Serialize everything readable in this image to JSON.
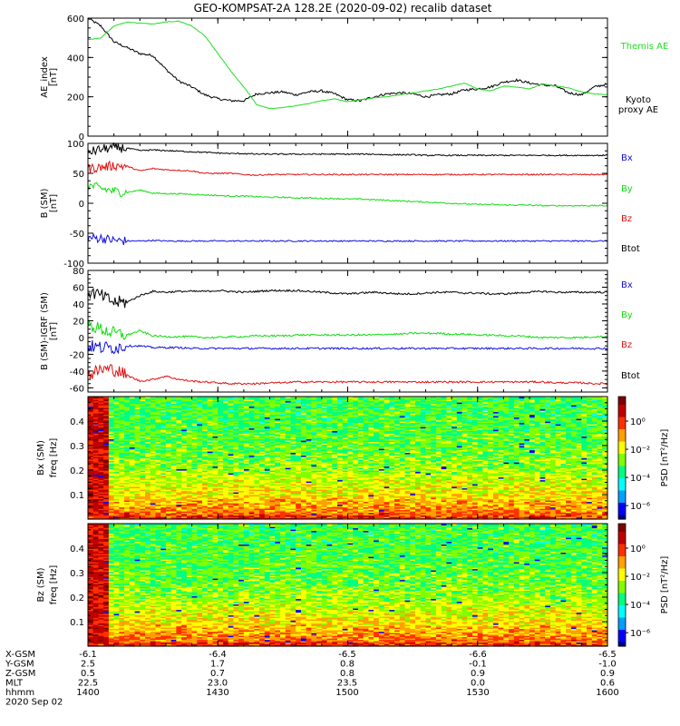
{
  "title": "GEO-KOMPSAT-2A 128.2E (2020-09-02) recalib dataset",
  "colors": {
    "black": "#000000",
    "red": "#e01010",
    "green": "#10dd10",
    "blue": "#1010dd",
    "kyoto": "#22dd22",
    "colorbar": [
      "#000080",
      "#0000ff",
      "#00a0ff",
      "#00ffff",
      "#00ff80",
      "#80ff00",
      "#ffff00",
      "#ffa000",
      "#ff3000",
      "#c00000",
      "#800000"
    ]
  },
  "chart_data": [
    {
      "type": "line",
      "id": "ae",
      "ylabel": [
        "AE_index",
        "[nT]"
      ],
      "ylim": [
        0,
        600
      ],
      "yticks": [
        0,
        200,
        400,
        600
      ],
      "x": [
        14.0,
        14.05,
        14.1,
        14.15,
        14.2,
        14.25,
        14.3,
        14.35,
        14.4,
        14.45,
        14.5,
        14.55,
        14.6,
        14.65,
        14.7,
        14.75,
        14.8,
        14.85,
        14.9,
        14.95,
        15.0,
        15.05,
        15.1,
        15.15,
        15.2,
        15.25,
        15.3,
        15.35,
        15.4,
        15.45,
        15.5,
        15.55,
        15.6,
        15.65,
        15.7,
        15.75,
        15.8,
        15.85,
        15.9,
        15.95,
        16.0
      ],
      "series": [
        {
          "name": "Themis AE",
          "color": "#000000",
          "values": [
            600,
            560,
            480,
            450,
            420,
            410,
            340,
            280,
            250,
            210,
            190,
            180,
            180,
            215,
            220,
            225,
            210,
            225,
            230,
            215,
            185,
            180,
            200,
            215,
            220,
            215,
            200,
            210,
            215,
            235,
            240,
            250,
            275,
            285,
            270,
            260,
            255,
            220,
            210,
            250,
            265
          ]
        },
        {
          "name": [
            "Kyoto",
            "proxy AE"
          ],
          "color": "#22dd22",
          "values": [
            490,
            500,
            560,
            580,
            575,
            570,
            580,
            585,
            560,
            510,
            420,
            330,
            250,
            160,
            140,
            145,
            155,
            165,
            180,
            190,
            175,
            185,
            195,
            200,
            210,
            220,
            230,
            240,
            255,
            270,
            240,
            230,
            255,
            250,
            240,
            265,
            255,
            245,
            225,
            215,
            210
          ]
        }
      ]
    },
    {
      "type": "line",
      "id": "bsm",
      "ylabel": [
        "B (SM)",
        "[nT]"
      ],
      "ylim": [
        -100,
        100
      ],
      "yticks": [
        -100,
        -50,
        0,
        50,
        100
      ],
      "x": [
        14.0,
        14.05,
        14.1,
        14.15,
        14.2,
        14.25,
        14.3,
        14.35,
        14.4,
        14.45,
        14.5,
        14.55,
        14.6,
        14.65,
        14.7,
        14.75,
        14.8,
        14.85,
        14.9,
        14.95,
        15.0,
        15.05,
        15.1,
        15.15,
        15.2,
        15.25,
        15.3,
        15.35,
        15.4,
        15.45,
        15.5,
        15.55,
        15.6,
        15.65,
        15.7,
        15.75,
        15.8,
        15.85,
        15.9,
        15.95,
        16.0
      ],
      "series": [
        {
          "name": "Bx",
          "color": "#1010dd",
          "values": [
            -58,
            -58,
            -62,
            -63,
            -63,
            -62,
            -63,
            -63,
            -63,
            -63,
            -63,
            -63,
            -63,
            -63,
            -63,
            -63,
            -63,
            -63,
            -63,
            -63,
            -63,
            -63,
            -63,
            -63,
            -63,
            -63,
            -63,
            -63,
            -63,
            -63,
            -63,
            -63,
            -63,
            -63,
            -63,
            -63,
            -63,
            -63,
            -63,
            -63,
            -63
          ]
        },
        {
          "name": "By",
          "color": "#10dd10",
          "values": [
            30,
            25,
            20,
            18,
            22,
            17,
            16,
            16,
            15,
            14,
            13,
            12,
            12,
            11,
            10,
            10,
            9,
            9,
            8,
            8,
            7,
            7,
            6,
            5,
            4,
            3,
            2,
            1,
            0,
            -1,
            -2,
            -2,
            -3,
            -3,
            -3,
            -4,
            -4,
            -4,
            -4,
            -4,
            -4
          ]
        },
        {
          "name": "Bz",
          "color": "#e01010",
          "values": [
            58,
            60,
            63,
            62,
            54,
            58,
            56,
            55,
            54,
            50,
            50,
            50,
            48,
            47,
            48,
            48,
            48,
            48,
            48,
            48,
            48,
            48,
            48,
            48,
            48,
            48,
            48,
            48,
            48,
            48,
            48,
            48,
            48,
            48,
            48,
            48,
            48,
            48,
            48,
            48,
            48
          ]
        },
        {
          "name": "Btot",
          "color": "#000000",
          "values": [
            85,
            90,
            93,
            92,
            88,
            89,
            88,
            87,
            86,
            85,
            84,
            83,
            83,
            82,
            82,
            82,
            82,
            82,
            82,
            82,
            82,
            82,
            82,
            81,
            81,
            81,
            80,
            80,
            80,
            80,
            80,
            80,
            80,
            80,
            80,
            80,
            80,
            80,
            80,
            80,
            80
          ]
        }
      ]
    },
    {
      "type": "line",
      "id": "bdiff",
      "ylabel": [
        "B (SM)-IGRF (SM)",
        "[nT]"
      ],
      "ylim": [
        -65,
        80
      ],
      "yticks": [
        -60,
        -40,
        -20,
        0,
        20,
        40,
        60,
        80
      ],
      "x": [
        14.0,
        14.05,
        14.1,
        14.15,
        14.2,
        14.25,
        14.3,
        14.35,
        14.4,
        14.45,
        14.5,
        14.55,
        14.6,
        14.65,
        14.7,
        14.75,
        14.8,
        14.85,
        14.9,
        14.95,
        15.0,
        15.05,
        15.1,
        15.15,
        15.2,
        15.25,
        15.3,
        15.35,
        15.4,
        15.45,
        15.5,
        15.55,
        15.6,
        15.65,
        15.7,
        15.75,
        15.8,
        15.85,
        15.9,
        15.95,
        16.0
      ],
      "series": [
        {
          "name": "Bx",
          "color": "#000000",
          "values": [
            55,
            50,
            42,
            42,
            50,
            55,
            54,
            55,
            55,
            55,
            56,
            55,
            54,
            55,
            56,
            56,
            56,
            55,
            54,
            53,
            52,
            53,
            54,
            53,
            52,
            52,
            53,
            54,
            54,
            53,
            53,
            52,
            52,
            53,
            54,
            55,
            54,
            54,
            54,
            54,
            54
          ]
        },
        {
          "name": "By",
          "color": "#10dd10",
          "values": [
            15,
            10,
            5,
            3,
            8,
            2,
            1,
            1,
            1,
            0,
            0,
            1,
            1,
            2,
            2,
            2,
            3,
            3,
            3,
            3,
            3,
            3,
            3,
            4,
            4,
            5,
            5,
            5,
            4,
            4,
            3,
            3,
            2,
            2,
            1,
            0,
            0,
            0,
            0,
            1,
            1
          ]
        },
        {
          "name": "Bz",
          "color": "#1010dd",
          "values": [
            -10,
            -12,
            -12,
            -10,
            -10,
            -12,
            -12,
            -12,
            -13,
            -13,
            -13,
            -13,
            -13,
            -13,
            -13,
            -13,
            -13,
            -13,
            -13,
            -13,
            -13,
            -13,
            -13,
            -13,
            -13,
            -13,
            -13,
            -13,
            -13,
            -13,
            -13,
            -13,
            -13,
            -13,
            -13,
            -13,
            -13,
            -13,
            -13,
            -13,
            -13
          ]
        },
        {
          "name": "Btot",
          "color": "#e01010",
          "values": [
            -45,
            -38,
            -38,
            -45,
            -52,
            -50,
            -46,
            -50,
            -52,
            -53,
            -54,
            -55,
            -55,
            -55,
            -54,
            -54,
            -53,
            -53,
            -53,
            -53,
            -53,
            -53,
            -53,
            -53,
            -53,
            -53,
            -53,
            -53,
            -53,
            -53,
            -53,
            -53,
            -53,
            -53,
            -53,
            -53,
            -54,
            -54,
            -54,
            -55,
            -55
          ]
        }
      ]
    },
    {
      "type": "heatmap",
      "id": "bx-spec",
      "ylabel": [
        "Bx (SM)",
        "freq [Hz]"
      ],
      "ylim": [
        0,
        0.5
      ],
      "yticks": [
        0.1,
        0.2,
        0.3,
        0.4
      ],
      "colorbar_label": "PSD [nT²/Hz]",
      "colorbar_ticks": [
        "10⁰",
        "10⁻²",
        "10⁻⁴",
        "10⁻⁶"
      ]
    },
    {
      "type": "heatmap",
      "id": "bz-spec",
      "ylabel": [
        "Bz (SM)",
        "freq [Hz]"
      ],
      "ylim": [
        0,
        0.5
      ],
      "yticks": [
        0.1,
        0.2,
        0.3,
        0.4
      ],
      "colorbar_label": "PSD [nT²/Hz]",
      "colorbar_ticks": [
        "10⁰",
        "10⁻²",
        "10⁻⁴",
        "10⁻⁶"
      ]
    }
  ],
  "axis_table": {
    "rows": [
      {
        "label": "X-GSM",
        "values": [
          "-6.1",
          "-6.4",
          "-6.5",
          "-6.6",
          "-6.5"
        ]
      },
      {
        "label": "Y-GSM",
        "values": [
          "2.5",
          "1.7",
          "0.8",
          "-0.1",
          "-1.0"
        ]
      },
      {
        "label": "Z-GSM",
        "values": [
          "0.5",
          "0.7",
          "0.8",
          "0.9",
          "0.9"
        ]
      },
      {
        "label": "MLT",
        "values": [
          "22.5",
          "23.0",
          "23.5",
          "0.0",
          "0.6"
        ]
      },
      {
        "label": "hhmm",
        "values": [
          "1400",
          "1430",
          "1500",
          "1530",
          "1600"
        ]
      }
    ],
    "date": "2020 Sep 02"
  }
}
